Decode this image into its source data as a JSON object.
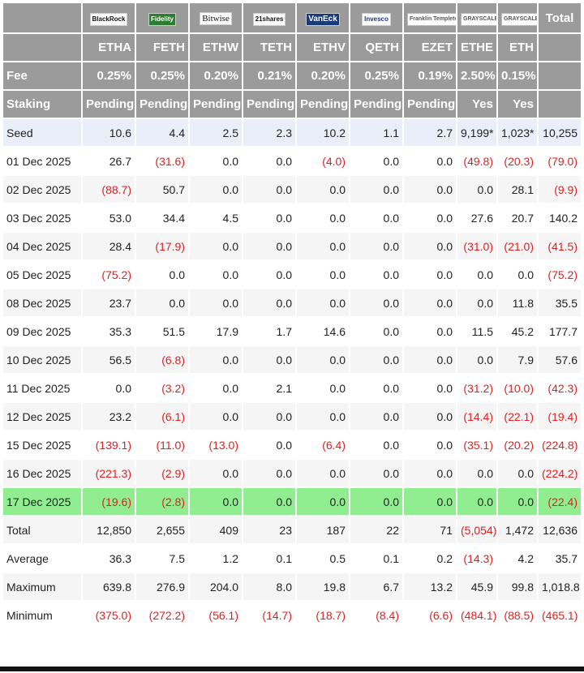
{
  "colors": {
    "header_bg": "#9b9b9b",
    "seed_bg": "#e9eef8",
    "alt_bg": "#f5f5f5",
    "highlight_bg": "#90ee90",
    "negative": "#e02020"
  },
  "brands": [
    "BlackRock",
    "Fidelity",
    "Bitwise",
    "21shares",
    "VanEck",
    "Invesco",
    "Franklin Templeton",
    "GRAYSCALE",
    "GRAYSCALE"
  ],
  "total_label": "Total",
  "tickers": [
    "ETHA",
    "FETH",
    "ETHW",
    "TETH",
    "ETHV",
    "QETH",
    "EZET",
    "ETHE",
    "ETH"
  ],
  "fee": {
    "label": "Fee",
    "values": [
      "0.25%",
      "0.25%",
      "0.20%",
      "0.21%",
      "0.20%",
      "0.25%",
      "0.19%",
      "2.50%",
      "0.15%"
    ]
  },
  "staking": {
    "label": "Staking",
    "values": [
      "Pending",
      "Pending",
      "Pending",
      "Pending",
      "Pending",
      "Pending",
      "Pending",
      "Yes",
      "Yes"
    ]
  },
  "rows": [
    {
      "label": "Seed",
      "values": [
        "10.6",
        "4.4",
        "2.5",
        "2.3",
        "10.2",
        "1.1",
        "2.7",
        "9,199*",
        "1,023*",
        "10,255"
      ]
    },
    {
      "label": "01 Dec 2025",
      "values": [
        "26.7",
        "(31.6)",
        "0.0",
        "0.0",
        "(4.0)",
        "0.0",
        "0.0",
        "(49.8)",
        "(20.3)",
        "(79.0)"
      ]
    },
    {
      "label": "02 Dec 2025",
      "values": [
        "(88.7)",
        "50.7",
        "0.0",
        "0.0",
        "0.0",
        "0.0",
        "0.0",
        "0.0",
        "28.1",
        "(9.9)"
      ]
    },
    {
      "label": "03 Dec 2025",
      "values": [
        "53.0",
        "34.4",
        "4.5",
        "0.0",
        "0.0",
        "0.0",
        "0.0",
        "27.6",
        "20.7",
        "140.2"
      ]
    },
    {
      "label": "04 Dec 2025",
      "values": [
        "28.4",
        "(17.9)",
        "0.0",
        "0.0",
        "0.0",
        "0.0",
        "0.0",
        "(31.0)",
        "(21.0)",
        "(41.5)"
      ]
    },
    {
      "label": "05 Dec 2025",
      "values": [
        "(75.2)",
        "0.0",
        "0.0",
        "0.0",
        "0.0",
        "0.0",
        "0.0",
        "0.0",
        "0.0",
        "(75.2)"
      ]
    },
    {
      "label": "08 Dec 2025",
      "values": [
        "23.7",
        "0.0",
        "0.0",
        "0.0",
        "0.0",
        "0.0",
        "0.0",
        "0.0",
        "11.8",
        "35.5"
      ]
    },
    {
      "label": "09 Dec 2025",
      "values": [
        "35.3",
        "51.5",
        "17.9",
        "1.7",
        "14.6",
        "0.0",
        "0.0",
        "11.5",
        "45.2",
        "177.7"
      ]
    },
    {
      "label": "10 Dec 2025",
      "values": [
        "56.5",
        "(6.8)",
        "0.0",
        "0.0",
        "0.0",
        "0.0",
        "0.0",
        "0.0",
        "7.9",
        "57.6"
      ]
    },
    {
      "label": "11 Dec 2025",
      "values": [
        "0.0",
        "(3.2)",
        "0.0",
        "2.1",
        "0.0",
        "0.0",
        "0.0",
        "(31.2)",
        "(10.0)",
        "(42.3)"
      ]
    },
    {
      "label": "12 Dec 2025",
      "values": [
        "23.2",
        "(6.1)",
        "0.0",
        "0.0",
        "0.0",
        "0.0",
        "0.0",
        "(14.4)",
        "(22.1)",
        "(19.4)"
      ]
    },
    {
      "label": "15 Dec 2025",
      "values": [
        "(139.1)",
        "(11.0)",
        "(13.0)",
        "0.0",
        "(6.4)",
        "0.0",
        "0.0",
        "(35.1)",
        "(20.2)",
        "(224.8)"
      ]
    },
    {
      "label": "16 Dec 2025",
      "values": [
        "(221.3)",
        "(2.9)",
        "0.0",
        "0.0",
        "0.0",
        "0.0",
        "0.0",
        "0.0",
        "0.0",
        "(224.2)"
      ]
    },
    {
      "label": "17 Dec 2025",
      "values": [
        "(19.6)",
        "(2.8)",
        "0.0",
        "0.0",
        "0.0",
        "0.0",
        "0.0",
        "0.0",
        "0.0",
        "(22.4)"
      ]
    },
    {
      "label": "Total",
      "values": [
        "12,850",
        "2,655",
        "409",
        "23",
        "187",
        "22",
        "71",
        "(5,054)",
        "1,472",
        "12,636"
      ]
    },
    {
      "label": "Average",
      "values": [
        "36.3",
        "7.5",
        "1.2",
        "0.1",
        "0.5",
        "0.1",
        "0.2",
        "(14.3)",
        "4.2",
        "35.7"
      ]
    },
    {
      "label": "Maximum",
      "values": [
        "639.8",
        "276.9",
        "204.0",
        "8.0",
        "19.8",
        "6.7",
        "13.2",
        "45.9",
        "99.8",
        "1,018.8"
      ]
    },
    {
      "label": "Minimum",
      "values": [
        "(375.0)",
        "(272.2)",
        "(56.1)",
        "(14.7)",
        "(18.7)",
        "(8.4)",
        "(6.6)",
        "(484.1)",
        "(88.5)",
        "(465.1)"
      ]
    }
  ]
}
